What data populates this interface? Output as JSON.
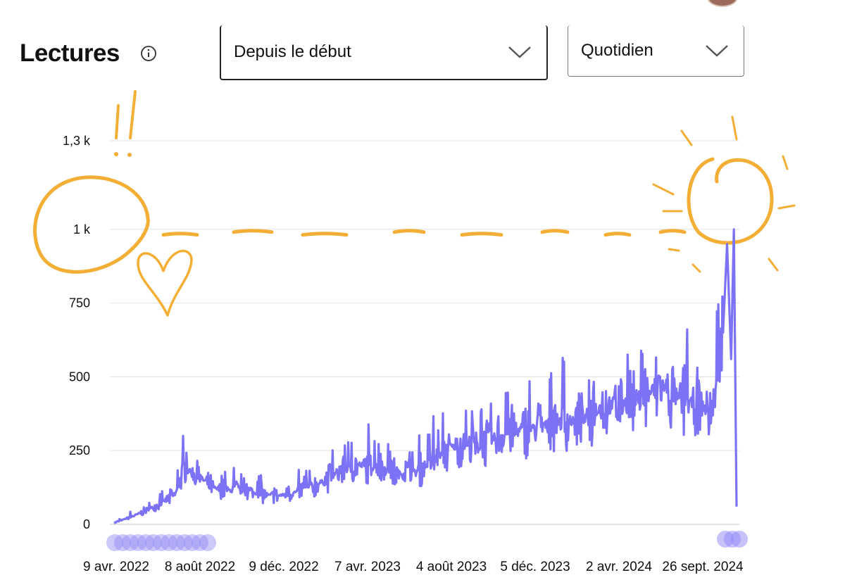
{
  "header": {
    "title": "Lectures",
    "info_icon": "info-icon"
  },
  "filters": {
    "period": {
      "value": "Depuis le début",
      "icon": "chevron-down-icon"
    },
    "frequency": {
      "value": "Quotidien",
      "icon": "chevron-down-icon"
    }
  },
  "colors": {
    "line": "#7b72f6",
    "handle": "#8f86f5",
    "annotation": "#f2ae35",
    "grid": "#e6e6e6"
  },
  "chart_data": {
    "type": "line",
    "title": "",
    "xlabel": "",
    "ylabel": "",
    "ylim": [
      0,
      1450
    ],
    "yticks": [
      0,
      250,
      500,
      750,
      1000,
      1300
    ],
    "ytick_labels": [
      "0",
      "250",
      "500",
      "750",
      "1 k",
      "1,3 k"
    ],
    "xtick_labels": [
      "9 avr. 2022",
      "8 août 2022",
      "9 déc. 2022",
      "7 avr. 2023",
      "4 août 2023",
      "5 déc. 2023",
      "2 avr. 2024",
      "26 sept. 2024"
    ],
    "grid": true,
    "series": [
      {
        "x": [
          "2022-04-09",
          "2022-05-09",
          "2022-06-08",
          "2022-07-08",
          "2022-07-23",
          "2022-08-07",
          "2022-09-06",
          "2022-10-06",
          "2022-11-05",
          "2022-12-05",
          "2023-01-04",
          "2023-02-03",
          "2023-03-05",
          "2023-04-04",
          "2023-05-04",
          "2023-06-03",
          "2023-07-03",
          "2023-08-02",
          "2023-09-01",
          "2023-10-01",
          "2023-10-31",
          "2023-11-30",
          "2023-12-30",
          "2024-01-29",
          "2024-02-28",
          "2024-03-29",
          "2024-04-28",
          "2024-05-28",
          "2024-06-27",
          "2024-07-27",
          "2024-08-26",
          "2024-09-10",
          "2024-09-25",
          "2024-10-01",
          "2024-10-07",
          "2024-10-11",
          "2024-10-15"
        ],
        "y": [
          5,
          30,
          60,
          100,
          190,
          170,
          120,
          115,
          105,
          95,
          110,
          135,
          175,
          200,
          195,
          170,
          180,
          230,
          275,
          260,
          300,
          320,
          330,
          350,
          345,
          400,
          410,
          430,
          470,
          420,
          400,
          380,
          650,
          950,
          560,
          1000,
          60
        ]
      }
    ],
    "annotations": {
      "exclamation": "!!",
      "heart_doodle": "heart",
      "sun_doodle": "sun",
      "dashed_reference_at": 1000
    }
  }
}
